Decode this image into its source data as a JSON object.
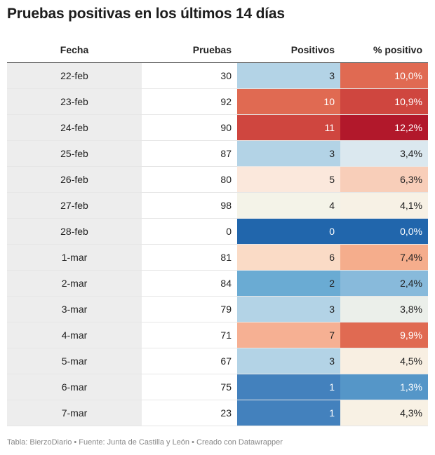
{
  "title": "Pruebas positivas en los últimos 14 días",
  "footer": "Tabla: BierzoDiario • Fuente: Junta de Castilla y León • Creado con Datawrapper",
  "chart_data": {
    "type": "table",
    "columns": [
      "Fecha",
      "Pruebas",
      "Positivos",
      "% positivo"
    ],
    "rows": [
      {
        "fecha": "22-feb",
        "pruebas": "30",
        "positivos": "3",
        "pct": "10,0%",
        "pos_color": "#b3d3e6",
        "pct_color": "#e06a52"
      },
      {
        "fecha": "23-feb",
        "pruebas": "92",
        "positivos": "10",
        "pct": "10,9%",
        "pos_color": "#e06a52",
        "pct_color": "#cf463f"
      },
      {
        "fecha": "24-feb",
        "pruebas": "90",
        "positivos": "11",
        "pct": "12,2%",
        "pos_color": "#cf463f",
        "pct_color": "#b2182b"
      },
      {
        "fecha": "25-feb",
        "pruebas": "87",
        "positivos": "3",
        "pct": "3,4%",
        "pos_color": "#b3d3e6",
        "pct_color": "#dbe8ef"
      },
      {
        "fecha": "26-feb",
        "pruebas": "80",
        "positivos": "5",
        "pct": "6,3%",
        "pos_color": "#fbe8dc",
        "pct_color": "#f8ceb9"
      },
      {
        "fecha": "27-feb",
        "pruebas": "98",
        "positivos": "4",
        "pct": "4,1%",
        "pos_color": "#f4f3e8",
        "pct_color": "#f7f1e5"
      },
      {
        "fecha": "28-feb",
        "pruebas": "0",
        "positivos": "0",
        "pct": "0,0%",
        "pos_color": "#2166ac",
        "pct_color": "#2166ac"
      },
      {
        "fecha": "1-mar",
        "pruebas": "81",
        "positivos": "6",
        "pct": "7,4%",
        "pos_color": "#fadbc6",
        "pct_color": "#f5ad8c"
      },
      {
        "fecha": "2-mar",
        "pruebas": "84",
        "positivos": "2",
        "pct": "2,4%",
        "pos_color": "#6aabd3",
        "pct_color": "#88badb"
      },
      {
        "fecha": "3-mar",
        "pruebas": "79",
        "positivos": "3",
        "pct": "3,8%",
        "pos_color": "#b3d3e6",
        "pct_color": "#ebefea"
      },
      {
        "fecha": "4-mar",
        "pruebas": "71",
        "positivos": "7",
        "pct": "9,9%",
        "pos_color": "#f6b093",
        "pct_color": "#e06a52"
      },
      {
        "fecha": "5-mar",
        "pruebas": "67",
        "positivos": "3",
        "pct": "4,5%",
        "pos_color": "#b3d3e6",
        "pct_color": "#f8efe2"
      },
      {
        "fecha": "6-mar",
        "pruebas": "75",
        "positivos": "1",
        "pct": "1,3%",
        "pos_color": "#4381bd",
        "pct_color": "#5596c8"
      },
      {
        "fecha": "7-mar",
        "pruebas": "23",
        "positivos": "1",
        "pct": "4,3%",
        "pos_color": "#4381bd",
        "pct_color": "#f8f1e4"
      }
    ]
  }
}
